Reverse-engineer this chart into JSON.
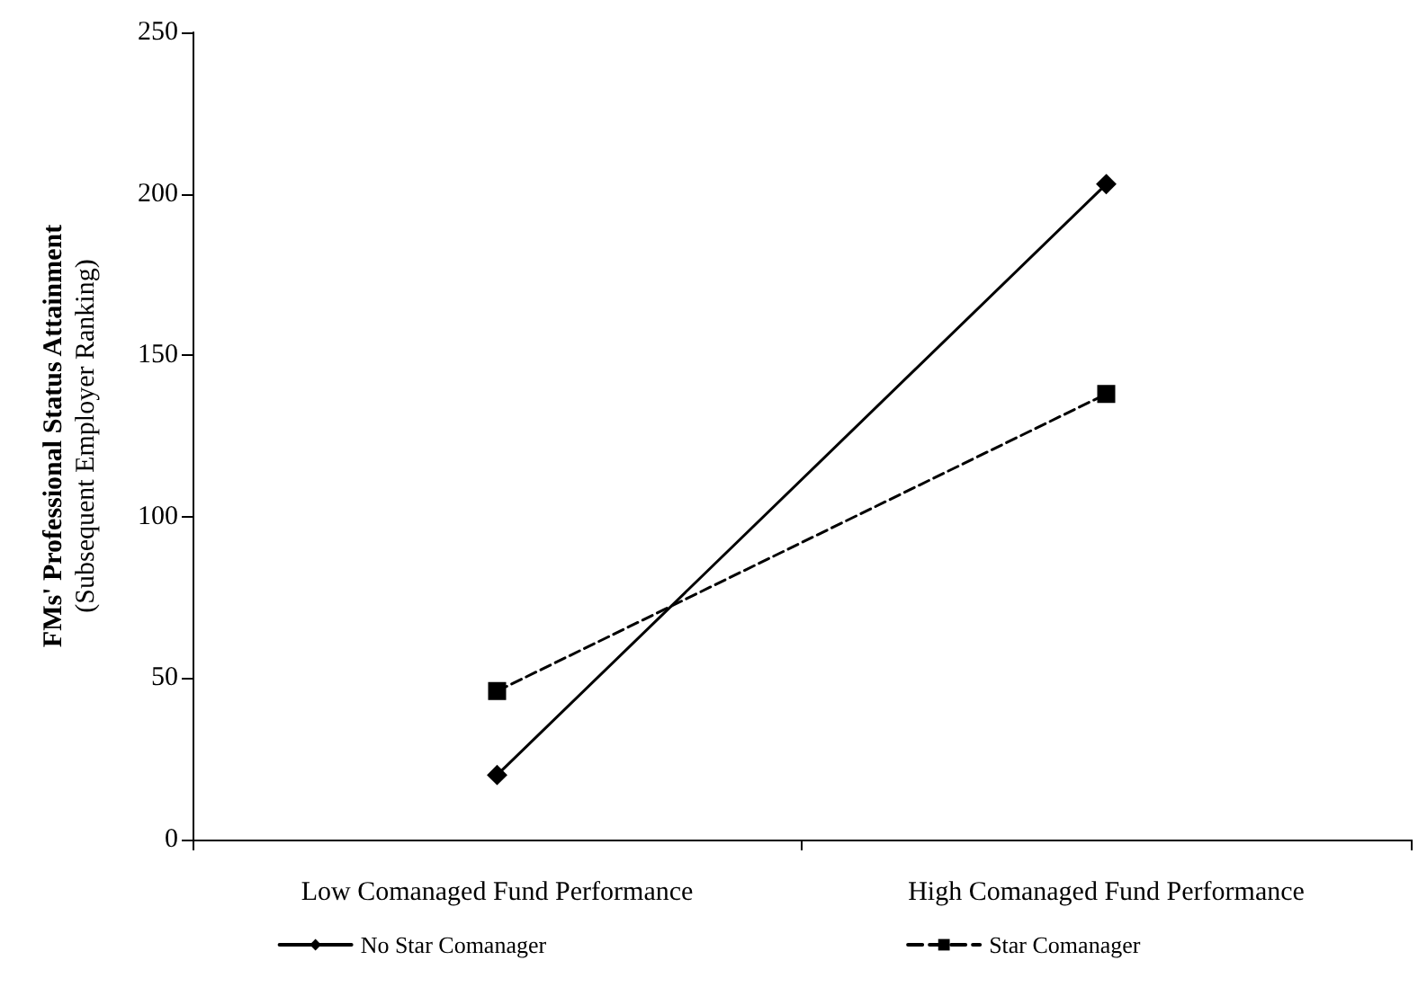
{
  "chart_data": {
    "type": "line",
    "xlabel": null,
    "ylabel": "FMs' Professional Status Attainment\n(Subsequent Employer Ranking)",
    "categories": [
      "Low Comanaged Fund Performance",
      "High Comanaged Fund Performance"
    ],
    "series": [
      {
        "name": "No Star Comanager",
        "color": "#000000",
        "values": [
          20,
          203
        ],
        "marker": "diamond",
        "line_style": "solid"
      },
      {
        "name": "Star Comanager",
        "color": "#000000",
        "values": [
          46,
          138
        ],
        "marker": "square",
        "line_style": "dashed"
      }
    ],
    "ylim": [
      0,
      250
    ],
    "yticks": [
      0,
      50,
      100,
      150,
      200,
      250
    ],
    "grid": false,
    "legend": "bottom"
  }
}
